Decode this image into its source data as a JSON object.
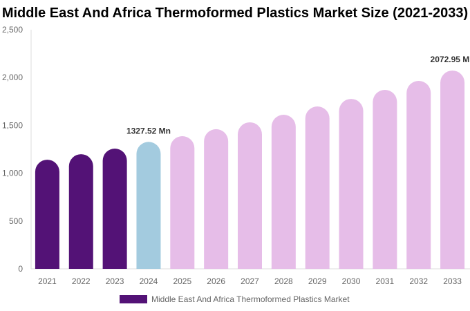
{
  "chart_data": {
    "type": "bar",
    "title": "Middle East And Africa Thermoformed Plastics Market Size (2021-2033)",
    "categories": [
      "2021",
      "2022",
      "2023",
      "2024",
      "2025",
      "2026",
      "2027",
      "2028",
      "2029",
      "2030",
      "2031",
      "2032",
      "2033"
    ],
    "series": [
      {
        "name": "Middle East And Africa Thermoformed Plastics Market",
        "values": [
          1141,
          1199,
          1257,
          1327.52,
          1387,
          1460,
          1532,
          1611,
          1698,
          1777,
          1871,
          1965,
          2072.95
        ]
      }
    ],
    "data_labels": [
      {
        "category": "2024",
        "text": "1327.52 Mn"
      },
      {
        "category": "2033",
        "text": "2072.95 Mn"
      }
    ],
    "ylim": [
      0,
      2500
    ],
    "yticks": [
      0,
      500,
      1000,
      1500,
      2000,
      2500
    ],
    "ytick_labels": [
      "0",
      "500",
      "1,000",
      "1,500",
      "2,000",
      "2,500"
    ],
    "xlabel": "",
    "ylabel": "",
    "grid": false,
    "legend": "bottom",
    "colors": {
      "historical": "#531276",
      "current": "#a3cbdf",
      "forecast": "#e6bde8",
      "legend": "#531276"
    },
    "historical_categories": [
      "2021",
      "2022",
      "2023"
    ],
    "current_category": "2024"
  }
}
